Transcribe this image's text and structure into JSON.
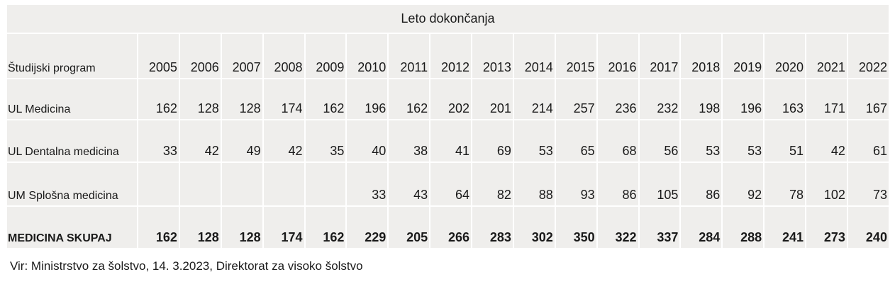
{
  "table": {
    "title": "Leto dokončanja",
    "header": [
      "Študijski program",
      2005,
      2006,
      2007,
      2008,
      2009,
      2010,
      2011,
      2012,
      2013,
      2014,
      2015,
      2016,
      2017,
      2018,
      2019,
      2020,
      2021,
      2022
    ],
    "rows": [
      [
        "UL Medicina",
        162,
        128,
        128,
        174,
        162,
        196,
        162,
        202,
        201,
        214,
        257,
        236,
        232,
        198,
        196,
        163,
        171,
        167
      ],
      [
        "UL Dentalna medicina",
        33,
        42,
        49,
        42,
        35,
        40,
        38,
        41,
        69,
        53,
        65,
        68,
        56,
        53,
        53,
        51,
        42,
        61
      ],
      [
        "UM Splošna medicina",
        null,
        null,
        null,
        null,
        null,
        33,
        43,
        64,
        82,
        88,
        93,
        86,
        105,
        86,
        92,
        78,
        102,
        73
      ],
      [
        "MEDICINA SKUPAJ",
        162,
        128,
        128,
        174,
        162,
        229,
        205,
        266,
        283,
        302,
        350,
        322,
        337,
        284,
        288,
        241,
        273,
        240
      ]
    ]
  },
  "source": "Vir: Ministrstvo za šolstvo, 14. 3.2023, Direktorat za visoko šolstvo"
}
